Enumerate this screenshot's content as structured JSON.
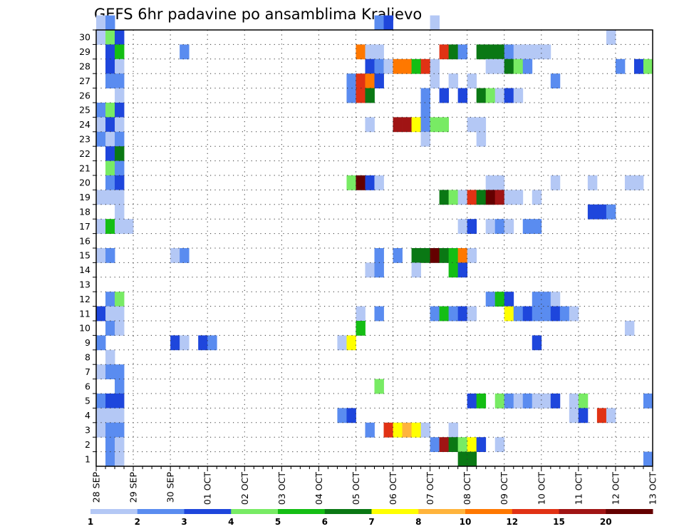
{
  "chart_data": {
    "type": "heatmap",
    "title": "GEFS 6hr padavine po ansamblima Kraljevo",
    "xlabel": "",
    "ylabel": "",
    "x_tick_labels": [
      "28 SEP",
      "29 SEP",
      "30 SEP",
      "01 OCT",
      "02 OCT",
      "03 OCT",
      "04 OCT",
      "05 OCT",
      "06 OCT",
      "07 OCT",
      "08 OCT",
      "09 OCT",
      "10 OCT",
      "11 OCT",
      "12 OCT",
      "13 OCT"
    ],
    "y_tick_labels": [
      "1",
      "2",
      "3",
      "4",
      "5",
      "6",
      "7",
      "8",
      "9",
      "10",
      "11",
      "12",
      "13",
      "14",
      "15",
      "16",
      "17",
      "18",
      "19",
      "20",
      "21",
      "22",
      "23",
      "24",
      "25",
      "26",
      "27",
      "28",
      "29",
      "30"
    ],
    "y_range": [
      0,
      30
    ],
    "x_range": [
      0,
      60
    ],
    "steps_per_day": 4,
    "grid": "dotted",
    "colorbar": {
      "position": "bottom",
      "levels": [
        "1",
        "2",
        "3",
        "4",
        "5",
        "6",
        "7",
        "8",
        "10",
        "12",
        "15",
        "20"
      ],
      "colors": [
        "#b4c8f5",
        "#5a8cf0",
        "#1e46dc",
        "#78eb64",
        "#14be14",
        "#0a7814",
        "#ffff00",
        "#ffb43c",
        "#ff7800",
        "#e13214",
        "#a01414",
        "#640000"
      ]
    },
    "cells": [
      [
        30,
        0,
        1
      ],
      [
        30,
        1,
        2
      ],
      [
        30,
        30,
        2
      ],
      [
        30,
        31,
        3
      ],
      [
        30,
        36,
        1
      ],
      [
        29,
        0,
        1
      ],
      [
        29,
        1,
        4
      ],
      [
        29,
        2,
        3
      ],
      [
        29,
        55,
        1
      ],
      [
        28,
        1,
        3
      ],
      [
        28,
        2,
        5
      ],
      [
        28,
        9,
        2
      ],
      [
        28,
        28,
        9
      ],
      [
        28,
        29,
        1
      ],
      [
        28,
        30,
        1
      ],
      [
        28,
        37,
        10
      ],
      [
        28,
        38,
        6
      ],
      [
        28,
        39,
        2
      ],
      [
        28,
        41,
        6
      ],
      [
        28,
        42,
        6
      ],
      [
        28,
        43,
        6
      ],
      [
        28,
        44,
        2
      ],
      [
        28,
        45,
        1
      ],
      [
        28,
        46,
        1
      ],
      [
        28,
        47,
        1
      ],
      [
        28,
        48,
        1
      ],
      [
        27,
        1,
        3
      ],
      [
        27,
        2,
        1
      ],
      [
        27,
        29,
        3
      ],
      [
        27,
        30,
        2
      ],
      [
        27,
        31,
        1
      ],
      [
        27,
        32,
        9
      ],
      [
        27,
        33,
        9
      ],
      [
        27,
        34,
        5
      ],
      [
        27,
        35,
        10
      ],
      [
        27,
        36,
        1
      ],
      [
        27,
        42,
        1
      ],
      [
        27,
        43,
        1
      ],
      [
        27,
        44,
        6
      ],
      [
        27,
        45,
        4
      ],
      [
        27,
        46,
        2
      ],
      [
        27,
        56,
        2
      ],
      [
        27,
        58,
        3
      ],
      [
        27,
        59,
        4
      ],
      [
        26,
        1,
        2
      ],
      [
        26,
        2,
        2
      ],
      [
        26,
        27,
        2
      ],
      [
        26,
        28,
        10
      ],
      [
        26,
        29,
        9
      ],
      [
        26,
        30,
        3
      ],
      [
        26,
        36,
        1
      ],
      [
        26,
        38,
        1
      ],
      [
        26,
        40,
        1
      ],
      [
        26,
        49,
        2
      ],
      [
        25,
        2,
        1
      ],
      [
        25,
        27,
        2
      ],
      [
        25,
        28,
        10
      ],
      [
        25,
        29,
        6
      ],
      [
        25,
        35,
        2
      ],
      [
        25,
        37,
        3
      ],
      [
        25,
        39,
        3
      ],
      [
        25,
        41,
        6
      ],
      [
        25,
        42,
        4
      ],
      [
        25,
        43,
        1
      ],
      [
        25,
        44,
        3
      ],
      [
        25,
        45,
        1
      ],
      [
        24,
        0,
        2
      ],
      [
        24,
        1,
        4
      ],
      [
        24,
        2,
        3
      ],
      [
        24,
        35,
        2
      ],
      [
        23,
        0,
        1
      ],
      [
        23,
        1,
        3
      ],
      [
        23,
        2,
        1
      ],
      [
        23,
        29,
        1
      ],
      [
        23,
        32,
        11
      ],
      [
        23,
        33,
        11
      ],
      [
        23,
        34,
        7
      ],
      [
        23,
        35,
        2
      ],
      [
        23,
        36,
        4
      ],
      [
        23,
        37,
        4
      ],
      [
        23,
        40,
        1
      ],
      [
        23,
        41,
        1
      ],
      [
        22,
        0,
        2
      ],
      [
        22,
        1,
        1
      ],
      [
        22,
        2,
        2
      ],
      [
        22,
        35,
        1
      ],
      [
        22,
        41,
        1
      ],
      [
        21,
        1,
        3
      ],
      [
        21,
        2,
        6
      ],
      [
        20,
        1,
        4
      ],
      [
        20,
        2,
        2
      ],
      [
        19,
        1,
        2
      ],
      [
        19,
        2,
        3
      ],
      [
        19,
        27,
        4
      ],
      [
        19,
        28,
        12
      ],
      [
        19,
        29,
        3
      ],
      [
        19,
        30,
        1
      ],
      [
        19,
        42,
        1
      ],
      [
        19,
        43,
        1
      ],
      [
        19,
        49,
        1
      ],
      [
        19,
        53,
        1
      ],
      [
        19,
        57,
        1
      ],
      [
        19,
        58,
        1
      ],
      [
        18,
        0,
        1
      ],
      [
        18,
        1,
        1
      ],
      [
        18,
        2,
        1
      ],
      [
        18,
        37,
        6
      ],
      [
        18,
        38,
        4
      ],
      [
        18,
        39,
        1
      ],
      [
        18,
        40,
        10
      ],
      [
        18,
        41,
        6
      ],
      [
        18,
        42,
        12
      ],
      [
        18,
        43,
        11
      ],
      [
        18,
        44,
        1
      ],
      [
        18,
        45,
        1
      ],
      [
        18,
        47,
        1
      ],
      [
        17,
        2,
        1
      ],
      [
        17,
        53,
        3
      ],
      [
        17,
        54,
        3
      ],
      [
        17,
        55,
        2
      ],
      [
        16,
        0,
        1
      ],
      [
        16,
        1,
        5
      ],
      [
        16,
        2,
        1
      ],
      [
        16,
        3,
        1
      ],
      [
        16,
        39,
        1
      ],
      [
        16,
        40,
        3
      ],
      [
        16,
        42,
        1
      ],
      [
        16,
        43,
        2
      ],
      [
        16,
        44,
        1
      ],
      [
        16,
        46,
        2
      ],
      [
        16,
        47,
        2
      ],
      [
        14,
        0,
        1
      ],
      [
        14,
        1,
        2
      ],
      [
        14,
        8,
        1
      ],
      [
        14,
        9,
        2
      ],
      [
        14,
        30,
        2
      ],
      [
        14,
        32,
        2
      ],
      [
        14,
        34,
        6
      ],
      [
        14,
        35,
        6
      ],
      [
        14,
        36,
        12
      ],
      [
        14,
        37,
        6
      ],
      [
        14,
        38,
        5
      ],
      [
        14,
        39,
        9
      ],
      [
        14,
        40,
        1
      ],
      [
        13,
        29,
        1
      ],
      [
        13,
        30,
        2
      ],
      [
        13,
        34,
        1
      ],
      [
        13,
        38,
        5
      ],
      [
        13,
        39,
        3
      ],
      [
        11,
        1,
        2
      ],
      [
        11,
        2,
        4
      ],
      [
        11,
        42,
        2
      ],
      [
        11,
        43,
        5
      ],
      [
        11,
        44,
        3
      ],
      [
        11,
        47,
        2
      ],
      [
        11,
        48,
        2
      ],
      [
        11,
        49,
        1
      ],
      [
        10,
        0,
        3
      ],
      [
        10,
        1,
        1
      ],
      [
        10,
        2,
        1
      ],
      [
        10,
        28,
        1
      ],
      [
        10,
        30,
        2
      ],
      [
        10,
        36,
        2
      ],
      [
        10,
        37,
        5
      ],
      [
        10,
        38,
        2
      ],
      [
        10,
        39,
        3
      ],
      [
        10,
        40,
        1
      ],
      [
        10,
        44,
        7
      ],
      [
        10,
        45,
        2
      ],
      [
        10,
        46,
        3
      ],
      [
        10,
        47,
        2
      ],
      [
        10,
        48,
        2
      ],
      [
        10,
        49,
        3
      ],
      [
        10,
        50,
        2
      ],
      [
        10,
        51,
        1
      ],
      [
        9,
        1,
        2
      ],
      [
        9,
        2,
        1
      ],
      [
        9,
        28,
        5
      ],
      [
        9,
        57,
        1
      ],
      [
        8,
        0,
        2
      ],
      [
        8,
        8,
        3
      ],
      [
        8,
        9,
        1
      ],
      [
        8,
        11,
        3
      ],
      [
        8,
        12,
        2
      ],
      [
        8,
        26,
        1
      ],
      [
        8,
        27,
        7
      ],
      [
        8,
        47,
        3
      ],
      [
        7,
        1,
        1
      ],
      [
        6,
        0,
        1
      ],
      [
        6,
        1,
        2
      ],
      [
        6,
        2,
        2
      ],
      [
        5,
        2,
        2
      ],
      [
        5,
        30,
        4
      ],
      [
        4,
        0,
        2
      ],
      [
        4,
        1,
        3
      ],
      [
        4,
        2,
        3
      ],
      [
        4,
        40,
        3
      ],
      [
        4,
        41,
        5
      ],
      [
        4,
        43,
        4
      ],
      [
        4,
        44,
        2
      ],
      [
        4,
        45,
        1
      ],
      [
        4,
        46,
        2
      ],
      [
        4,
        47,
        1
      ],
      [
        4,
        48,
        1
      ],
      [
        4,
        49,
        3
      ],
      [
        4,
        51,
        1
      ],
      [
        4,
        52,
        4
      ],
      [
        4,
        59,
        2
      ],
      [
        3,
        0,
        1
      ],
      [
        3,
        1,
        1
      ],
      [
        3,
        2,
        1
      ],
      [
        3,
        26,
        2
      ],
      [
        3,
        27,
        3
      ],
      [
        3,
        51,
        1
      ],
      [
        3,
        52,
        3
      ],
      [
        3,
        54,
        10
      ],
      [
        3,
        55,
        1
      ],
      [
        2,
        0,
        1
      ],
      [
        2,
        1,
        2
      ],
      [
        2,
        2,
        2
      ],
      [
        2,
        29,
        2
      ],
      [
        2,
        31,
        10
      ],
      [
        2,
        32,
        7
      ],
      [
        2,
        33,
        8
      ],
      [
        2,
        34,
        7
      ],
      [
        2,
        35,
        1
      ],
      [
        2,
        38,
        1
      ],
      [
        1,
        1,
        2
      ],
      [
        1,
        2,
        1
      ],
      [
        1,
        36,
        2
      ],
      [
        1,
        37,
        11
      ],
      [
        1,
        38,
        6
      ],
      [
        1,
        39,
        4
      ],
      [
        1,
        40,
        7
      ],
      [
        1,
        41,
        3
      ],
      [
        1,
        43,
        1
      ],
      [
        0,
        1,
        2
      ],
      [
        0,
        2,
        1
      ],
      [
        0,
        39,
        6
      ],
      [
        0,
        40,
        6
      ],
      [
        0,
        59,
        2
      ]
    ]
  }
}
